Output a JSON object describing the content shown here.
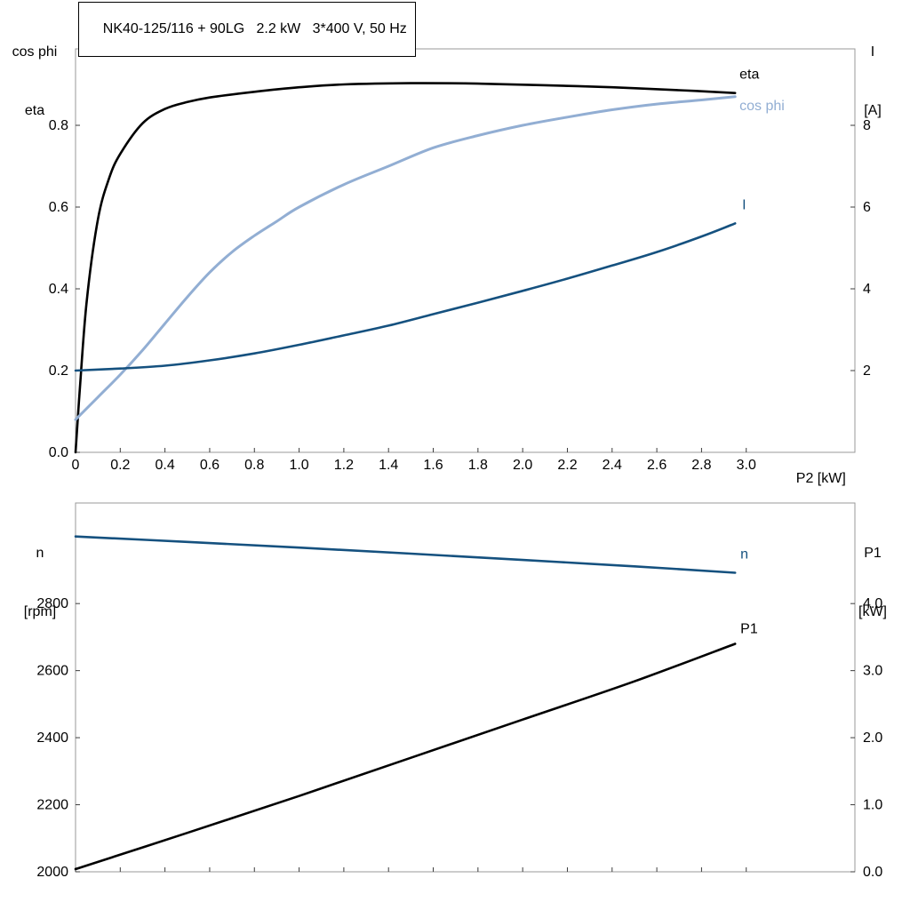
{
  "style": {
    "background": "#ffffff",
    "frame_color": "#9a9a9a",
    "tick_color": "#3c3c3c",
    "black": "#000000",
    "dark_blue": "#15517f",
    "light_blue": "#92aed3"
  },
  "chart_data": [
    {
      "type": "line",
      "title": "NK40-125/116 + 90LG   2.2 kW   3*400 V, 50 Hz",
      "xlabel": "P2 [kW]",
      "x_range": [
        0,
        3.486
      ],
      "x_ticks": [
        0,
        0.2,
        0.4,
        0.6,
        0.8,
        1.0,
        1.2,
        1.4,
        1.6,
        1.8,
        2.0,
        2.2,
        2.4,
        2.6,
        2.8,
        3.0
      ],
      "x_tick_labels": [
        "0",
        "0.2",
        "0.4",
        "0.6",
        "0.8",
        "1.0",
        "1.2",
        "1.4",
        "1.6",
        "1.8",
        "2.0",
        "2.2",
        "2.4",
        "2.6",
        "2.8",
        "3.0"
      ],
      "left_axis": {
        "name_lines": [
          "cos phi",
          "eta"
        ],
        "range": [
          0,
          0.987
        ],
        "ticks": [
          0.0,
          0.2,
          0.4,
          0.6,
          0.8
        ],
        "tick_labels": [
          "0.0",
          "0.2",
          "0.4",
          "0.6",
          "0.8"
        ]
      },
      "right_axis": {
        "name_lines": [
          "I",
          "[A]"
        ],
        "range": [
          0,
          9.87
        ],
        "ticks": [
          2,
          4,
          6,
          8
        ],
        "tick_labels": [
          "2",
          "4",
          "6",
          "8"
        ]
      },
      "series": [
        {
          "name": "eta",
          "axis": "left",
          "color": "#000000",
          "width": 2.6,
          "x": [
            0,
            0.02,
            0.05,
            0.1,
            0.15,
            0.2,
            0.3,
            0.4,
            0.5,
            0.6,
            0.8,
            1.0,
            1.2,
            1.5,
            1.8,
            2.1,
            2.4,
            2.7,
            2.95
          ],
          "y": [
            0,
            0.16,
            0.37,
            0.57,
            0.67,
            0.73,
            0.805,
            0.84,
            0.857,
            0.868,
            0.882,
            0.893,
            0.9,
            0.903,
            0.902,
            0.898,
            0.893,
            0.886,
            0.879
          ]
        },
        {
          "name": "cos phi",
          "axis": "left",
          "color": "#92aed3",
          "width": 3,
          "x": [
            0,
            0.1,
            0.2,
            0.3,
            0.4,
            0.5,
            0.6,
            0.7,
            0.8,
            0.9,
            1.0,
            1.2,
            1.4,
            1.6,
            1.8,
            2.0,
            2.2,
            2.4,
            2.6,
            2.8,
            2.95
          ],
          "y": [
            0.08,
            0.135,
            0.19,
            0.25,
            0.315,
            0.38,
            0.44,
            0.49,
            0.53,
            0.565,
            0.6,
            0.655,
            0.7,
            0.745,
            0.775,
            0.8,
            0.82,
            0.838,
            0.852,
            0.862,
            0.87
          ]
        },
        {
          "name": "I",
          "axis": "right",
          "color": "#15517f",
          "width": 2.6,
          "x": [
            0,
            0.2,
            0.4,
            0.6,
            0.8,
            1.0,
            1.2,
            1.4,
            1.6,
            1.8,
            2.0,
            2.2,
            2.4,
            2.6,
            2.8,
            2.95
          ],
          "y": [
            2.0,
            2.05,
            2.12,
            2.25,
            2.42,
            2.63,
            2.86,
            3.1,
            3.38,
            3.66,
            3.95,
            4.25,
            4.57,
            4.9,
            5.28,
            5.6
          ]
        }
      ]
    },
    {
      "type": "line",
      "title": "",
      "xlabel": "",
      "x_range": [
        0,
        3.486
      ],
      "x_ticks": [
        0,
        0.2,
        0.4,
        0.6,
        0.8,
        1.0,
        1.2,
        1.4,
        1.6,
        1.8,
        2.0,
        2.2,
        2.4,
        2.6,
        2.8,
        3.0
      ],
      "x_tick_labels": [],
      "left_axis": {
        "name_lines": [
          "n",
          "[rpm]"
        ],
        "range": [
          2000,
          3100
        ],
        "ticks": [
          2000,
          2200,
          2400,
          2600,
          2800
        ],
        "tick_labels": [
          "2000",
          "2200",
          "2400",
          "2600",
          "2800"
        ]
      },
      "right_axis": {
        "name_lines": [
          "P1",
          "[kW]"
        ],
        "range": [
          0,
          5.5
        ],
        "ticks": [
          0,
          1,
          2,
          3,
          4
        ],
        "tick_labels": [
          "0.0",
          "1.0",
          "2.0",
          "3.0",
          "4.0"
        ]
      },
      "series": [
        {
          "name": "n",
          "axis": "left",
          "color": "#15517f",
          "width": 2.6,
          "x": [
            0,
            0.5,
            1.0,
            1.5,
            2.0,
            2.5,
            2.95
          ],
          "y": [
            3000,
            2984,
            2967,
            2949,
            2930,
            2911,
            2892
          ]
        },
        {
          "name": "P1",
          "axis": "right",
          "color": "#000000",
          "width": 2.6,
          "x": [
            0,
            0.5,
            1.0,
            1.5,
            2.0,
            2.5,
            2.95
          ],
          "y": [
            0.04,
            0.58,
            1.13,
            1.7,
            2.27,
            2.84,
            3.4
          ]
        }
      ]
    }
  ]
}
